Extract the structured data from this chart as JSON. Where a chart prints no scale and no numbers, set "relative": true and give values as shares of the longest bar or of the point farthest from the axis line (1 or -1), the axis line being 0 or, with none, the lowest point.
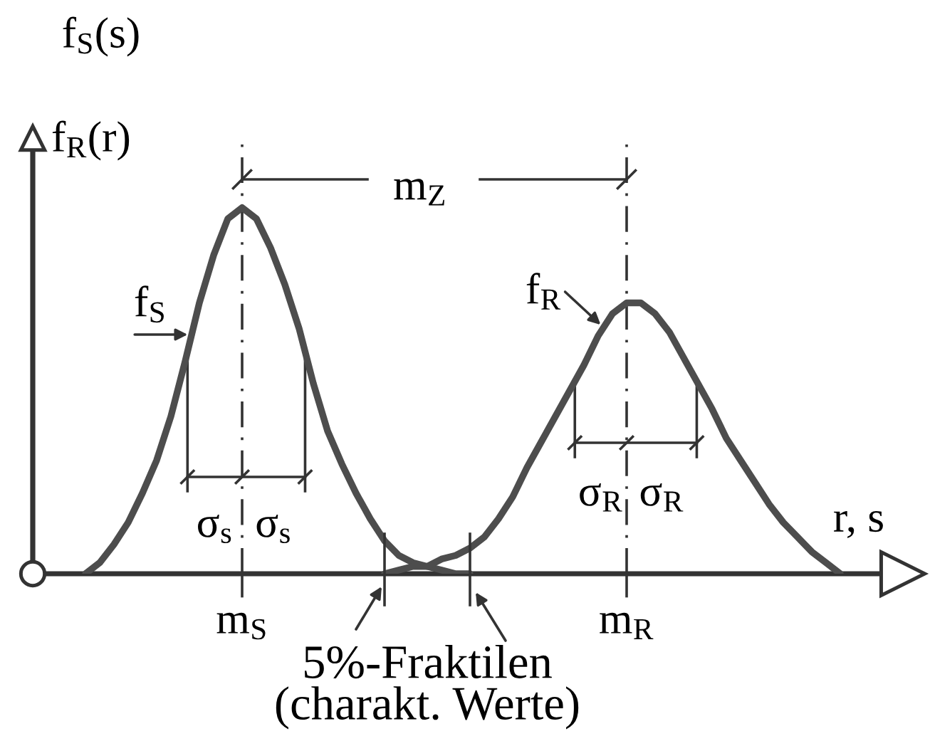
{
  "chart_data": {
    "type": "line",
    "relative": true,
    "xlabel": "r, s",
    "ylabel": "f$_{R}$(r)",
    "tick_labels": "x",
    "categories": [
      null,
      null,
      null,
      null,
      null,
      null,
      null,
      null,
      null,
      null,
      null,
      "m$_{S}$",
      null,
      null,
      null,
      null,
      null,
      null,
      null,
      null,
      null,
      null,
      null,
      null,
      null,
      null,
      null,
      null,
      null,
      null,
      null,
      null,
      null,
      null,
      null,
      null,
      null,
      null,
      "m$_{R}$",
      null,
      null,
      null,
      null,
      null,
      null,
      null,
      null,
      null,
      null,
      null,
      null,
      null,
      null,
      null,
      null,
      null,
      null
    ],
    "series": [
      {
        "name": "f$_{S}$",
        "color": "#4d4d4d",
        "values": [
          0,
          0.03,
          0.08,
          0.14,
          0.22,
          0.31,
          0.43,
          0.58,
          0.74,
          0.87,
          0.97,
          1,
          0.97,
          0.89,
          0.79,
          0.67,
          0.52,
          0.39,
          0.3,
          0.22,
          0.15,
          0.09,
          0.05,
          0.03,
          0.02,
          0.01,
          0,
          0,
          null,
          null,
          null,
          null,
          null,
          null,
          null,
          null,
          null,
          null,
          null,
          null,
          null,
          null,
          null,
          null,
          null,
          null,
          null,
          null,
          null,
          null,
          null,
          null,
          null,
          null,
          null,
          null,
          null
        ]
      },
      {
        "name": "f$_{R}$",
        "color": "#4d4d4d",
        "values": [
          null,
          null,
          null,
          null,
          null,
          null,
          null,
          null,
          null,
          null,
          null,
          null,
          null,
          null,
          null,
          null,
          null,
          null,
          null,
          null,
          null,
          0,
          0.01,
          0.02,
          0.02,
          0.04,
          0.05,
          0.07,
          0.1,
          0.15,
          0.21,
          0.29,
          0.36,
          0.43,
          0.5,
          0.57,
          0.65,
          0.71,
          0.74,
          0.74,
          0.71,
          0.66,
          0.59,
          0.52,
          0.45,
          0.37,
          0.31,
          0.25,
          0.19,
          0.14,
          0.1,
          0.06,
          0.03,
          0,
          null,
          null,
          null
        ]
      }
    ],
    "ref_lines": [
      {
        "axis": "x",
        "value": "m$_{S}$",
        "line_style": "dashdot",
        "color": "#333333"
      },
      {
        "axis": "x",
        "value": "m$_{R}$",
        "line_style": "dashdot",
        "color": "#333333"
      }
    ],
    "annotations": [
      "f$_{S}$(s)",
      "m$_{Z}$",
      "σ$_{s}$",
      "σ$_{s}$",
      "σ$_{R}$",
      "σ$_{R}$",
      "5%-Fraktilen\n(charakt. Werte)"
    ]
  }
}
